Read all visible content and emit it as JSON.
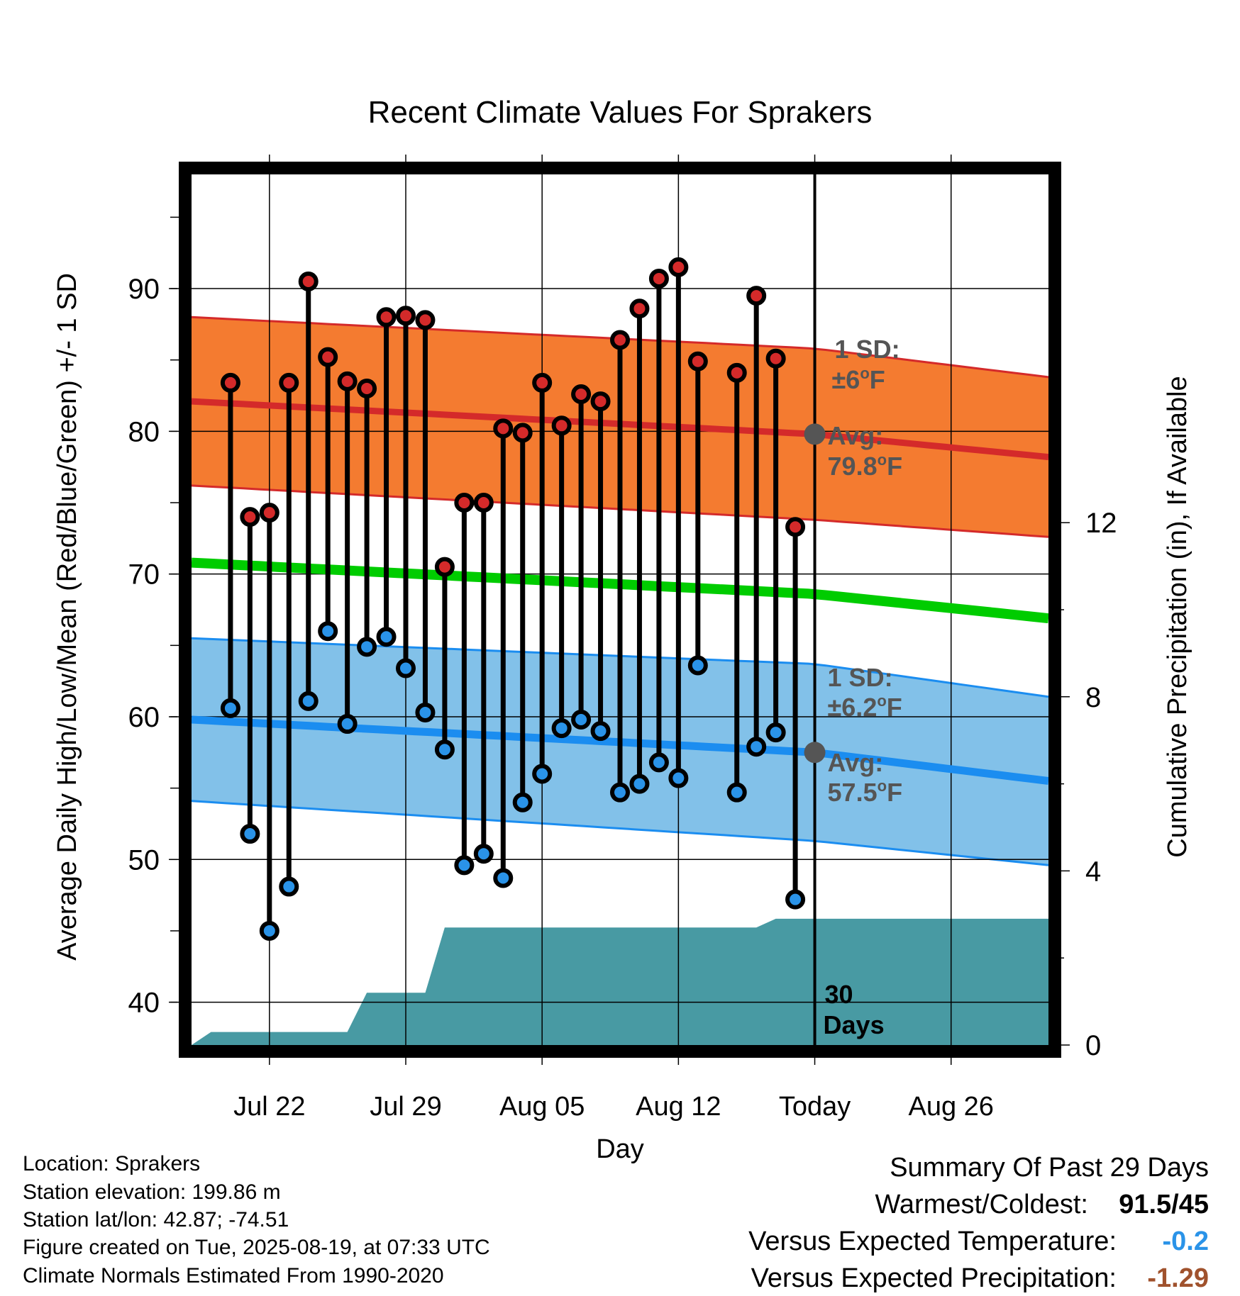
{
  "chart_data": {
    "type": "line",
    "title": "Recent Climate Values For Sprakers",
    "xlabel": "Day",
    "ylabel": "Average Daily High/Low/Mean (Red/Blue/Green) +/- 1 SD",
    "y2label": "Cumulative Precipitation (in), If Available",
    "ylim": [
      37,
      98
    ],
    "y2lim": [
      0,
      20
    ],
    "yticks": [
      40,
      50,
      60,
      70,
      80,
      90
    ],
    "y2ticks": [
      0,
      4,
      8,
      12
    ],
    "xlim": [
      "2025-07-18",
      "2025-08-31"
    ],
    "x_ticks": [
      {
        "date": "2025-07-22",
        "label": "Jul 22"
      },
      {
        "date": "2025-07-29",
        "label": "Jul 29"
      },
      {
        "date": "2025-08-05",
        "label": "Aug 05"
      },
      {
        "date": "2025-08-12",
        "label": "Aug 12"
      },
      {
        "date": "2025-08-19",
        "label": "Today"
      },
      {
        "date": "2025-08-26",
        "label": "Aug 26"
      }
    ],
    "grid": true,
    "today": "2025-08-19",
    "series": [
      {
        "name": "High",
        "color": "#d42a2a",
        "x": [
          "2025-07-20",
          "2025-07-21",
          "2025-07-22",
          "2025-07-23",
          "2025-07-24",
          "2025-07-25",
          "2025-07-26",
          "2025-07-27",
          "2025-07-28",
          "2025-07-29",
          "2025-07-30",
          "2025-07-31",
          "2025-08-01",
          "2025-08-02",
          "2025-08-03",
          "2025-08-04",
          "2025-08-05",
          "2025-08-06",
          "2025-08-07",
          "2025-08-08",
          "2025-08-09",
          "2025-08-10",
          "2025-08-11",
          "2025-08-12",
          "2025-08-13",
          "2025-08-15",
          "2025-08-16",
          "2025-08-17",
          "2025-08-18"
        ],
        "values": [
          83.4,
          74.0,
          74.3,
          83.4,
          90.5,
          85.2,
          83.5,
          83.0,
          88.0,
          88.1,
          87.8,
          70.5,
          75.0,
          75.0,
          80.2,
          79.9,
          83.4,
          80.4,
          82.6,
          82.1,
          86.4,
          88.6,
          90.7,
          91.5,
          84.9,
          84.1,
          89.5,
          85.1,
          73.3
        ]
      },
      {
        "name": "Low",
        "color": "#2a93e8",
        "x": [
          "2025-07-20",
          "2025-07-21",
          "2025-07-22",
          "2025-07-23",
          "2025-07-24",
          "2025-07-25",
          "2025-07-26",
          "2025-07-27",
          "2025-07-28",
          "2025-07-29",
          "2025-07-30",
          "2025-07-31",
          "2025-08-01",
          "2025-08-02",
          "2025-08-03",
          "2025-08-04",
          "2025-08-05",
          "2025-08-06",
          "2025-08-07",
          "2025-08-08",
          "2025-08-09",
          "2025-08-10",
          "2025-08-11",
          "2025-08-12",
          "2025-08-13",
          "2025-08-15",
          "2025-08-16",
          "2025-08-17",
          "2025-08-18"
        ],
        "values": [
          60.6,
          51.8,
          45.0,
          48.1,
          61.1,
          66.0,
          59.5,
          64.9,
          65.6,
          63.4,
          60.3,
          57.7,
          49.6,
          50.4,
          48.7,
          54.0,
          56.0,
          59.2,
          59.8,
          59.0,
          54.7,
          55.3,
          56.8,
          55.7,
          63.6,
          54.7,
          57.9,
          58.9,
          47.2
        ]
      },
      {
        "name": "Normal High",
        "color": "#d42a2a",
        "x": [
          "2025-07-18",
          "2025-08-19",
          "2025-08-31"
        ],
        "values": [
          82.1,
          79.8,
          78.2
        ],
        "sd_band": [
          5.9,
          6.0,
          5.6
        ],
        "band_color": "#f47b30"
      },
      {
        "name": "Normal Mean",
        "color": "#00cc00",
        "x": [
          "2025-07-18",
          "2025-08-19",
          "2025-08-31"
        ],
        "values": [
          70.8,
          68.6,
          66.9
        ]
      },
      {
        "name": "Normal Low",
        "color": "#1b8df0",
        "x": [
          "2025-07-18",
          "2025-08-19",
          "2025-08-31"
        ],
        "values": [
          59.8,
          57.5,
          55.5
        ],
        "sd_band": [
          5.7,
          6.2,
          5.9
        ],
        "band_color": "#82c1e9"
      },
      {
        "name": "Cumulative Precipitation",
        "color": "#489aa3",
        "x": [
          "2025-07-18",
          "2025-07-19",
          "2025-07-26",
          "2025-07-27",
          "2025-07-30",
          "2025-07-31",
          "2025-08-16",
          "2025-08-17",
          "2025-08-31"
        ],
        "values": [
          0.0,
          0.3,
          0.3,
          1.2,
          1.2,
          2.7,
          2.7,
          2.9,
          2.9
        ]
      }
    ],
    "annotations": {
      "high_sd_label": "1 SD:",
      "high_sd_value": "±6",
      "high_avg_label": "Avg:",
      "high_avg_value": "79.8",
      "low_sd_label": "1 SD:",
      "low_sd_value": "±6.2",
      "low_avg_label": "Avg:",
      "low_avg_value": "57.5",
      "unit_sup": "o",
      "unit_letter": "F",
      "days_number": "30",
      "days_word": "Days"
    }
  },
  "footer": {
    "location": "Location: Sprakers",
    "elevation": "Station elevation: 199.86 m",
    "latlon": "Station lat/lon: 42.87; -74.51",
    "created": "Figure created on Tue, 2025-08-19, at 07:33 UTC",
    "normals": "Climate Normals Estimated From 1990-2020"
  },
  "summary": {
    "title": "Summary Of Past 29 Days",
    "warm_cold_label": "Warmest/Coldest:",
    "warm_cold_value": "91.5/45",
    "temp_label": "Versus Expected Temperature:",
    "temp_value": "-0.2",
    "temp_color": "#2a93e8",
    "precip_label": "Versus Expected Precipitation:",
    "precip_value": "-1.29",
    "precip_color": "#a0522d"
  }
}
